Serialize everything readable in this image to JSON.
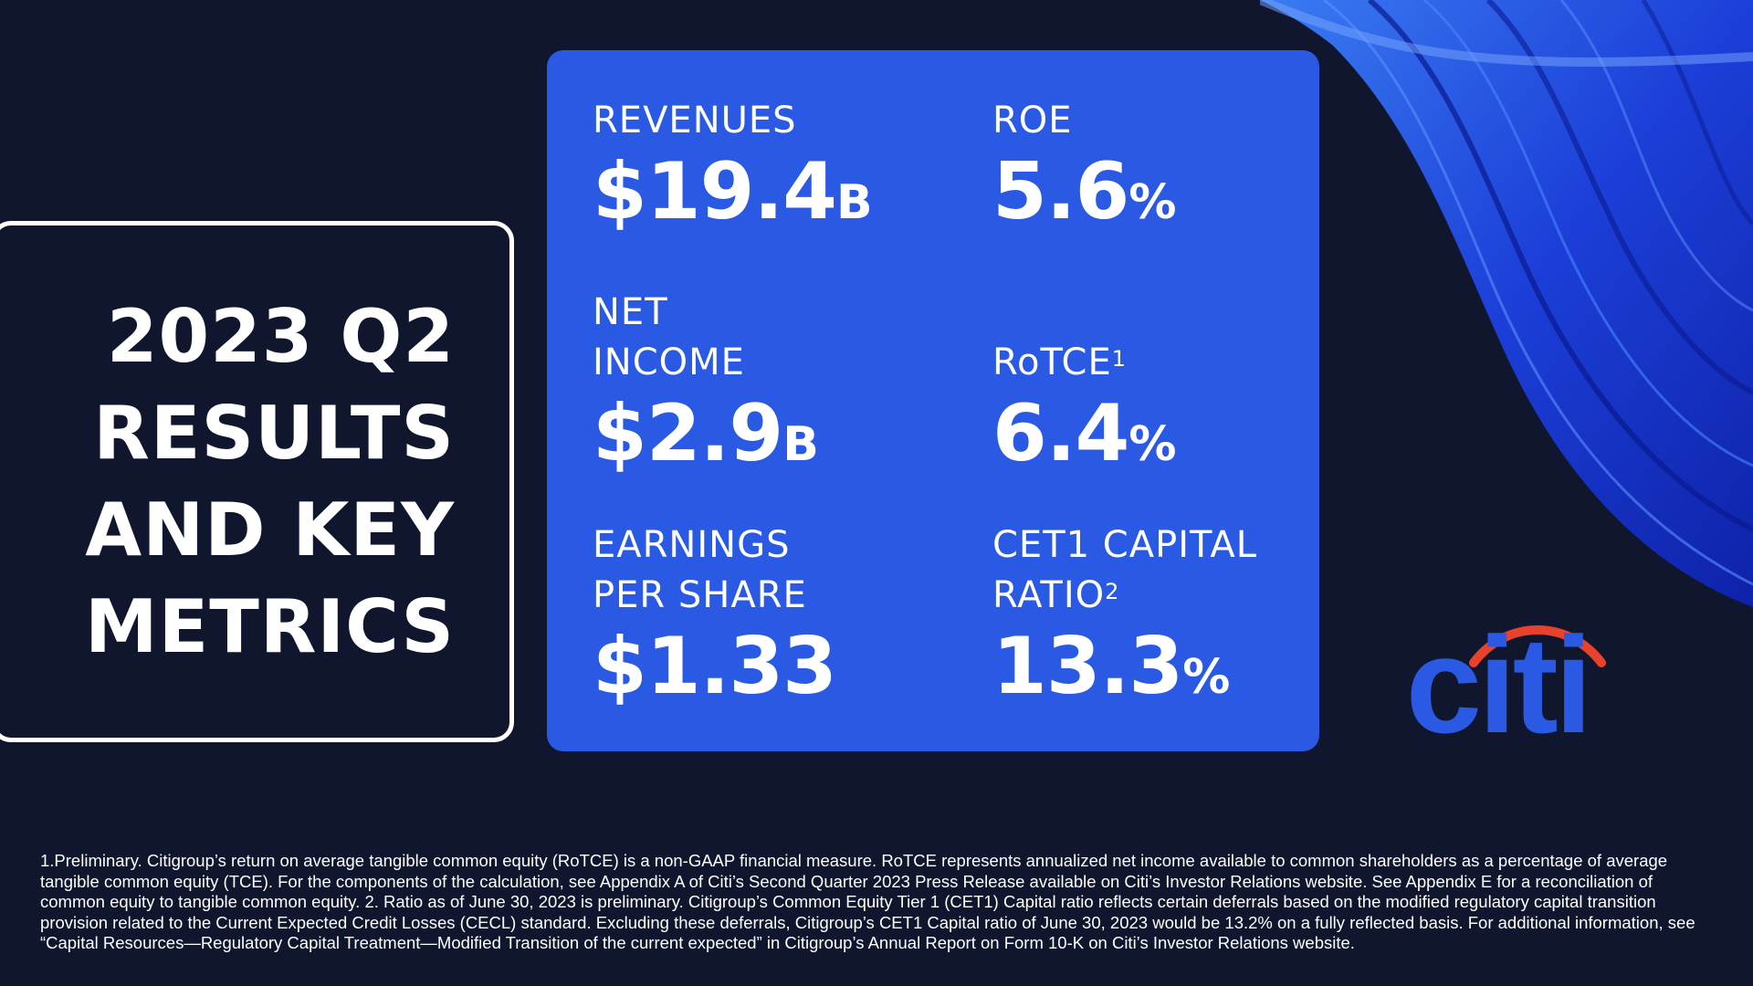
{
  "title": {
    "lines": [
      "2023 Q2",
      "RESULTS",
      "AND KEY",
      "METRICS"
    ]
  },
  "metrics": {
    "revenues": {
      "label": "REVENUES",
      "value": "$19.4",
      "unit": "B"
    },
    "roe": {
      "label": "ROE",
      "value": "5.6",
      "unit": "%"
    },
    "net_income": {
      "label_line1": "NET",
      "label_line2": "INCOME",
      "value": "$2.9",
      "unit": "B"
    },
    "rotce": {
      "label": "RoTCE",
      "sup": "1",
      "value": "6.4",
      "unit": "%"
    },
    "eps": {
      "label_line1": "EARNINGS",
      "label_line2": "PER SHARE",
      "value": "$1.33"
    },
    "cet1": {
      "label_line1": "CET1 CAPITAL",
      "label_line2": "RATIO",
      "sup": "2",
      "value": "13.3",
      "unit": "%"
    }
  },
  "logo": {
    "text": "citi",
    "arc_color": "#e8412c",
    "text_color": "#2a5ae4"
  },
  "footnote": "1.Preliminary. Citigroup’s return on average tangible common equity (RoTCE) is a non-GAAP financial measure. RoTCE represents annualized net income available to common shareholders as a percentage of average tangible common equity (TCE). For the components of the calculation, see Appendix A of Citi’s Second Quarter 2023 Press Release available on Citi’s Investor Relations website. See Appendix E for a reconciliation of common equity to tangible common equity. 2. Ratio as of June 30, 2023 is preliminary. Citigroup’s Common Equity Tier 1 (CET1) Capital ratio reflects certain deferrals based on the modified regulatory capital transition provision related to the Current Expected Credit Losses (CECL) standard. Excluding these deferrals, Citigroup’s CET1 Capital ratio of June 30, 2023 would be 13.2% on a fully reflected basis. For additional information, see “Capital Resources—Regulatory Capital Treatment—Modified Transition of the current expected” in Citigroup’s Annual Report on Form 10-K on Citi’s Investor Relations website.",
  "colors": {
    "background": "#0f162e",
    "panel": "#2a5ae4",
    "ribbon": "#1f3fe0"
  }
}
